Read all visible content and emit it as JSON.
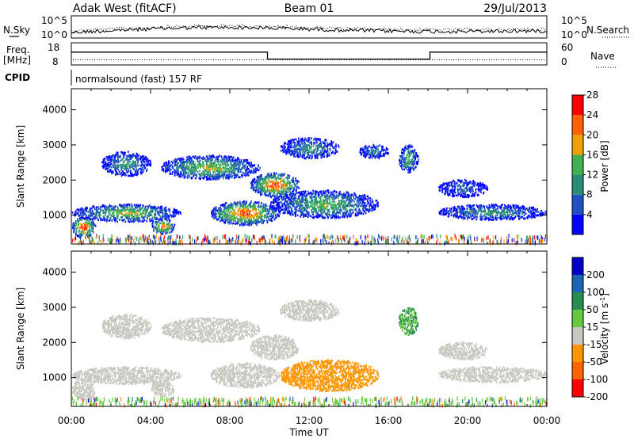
{
  "header": {
    "station": "Adak West (fitACF)",
    "beam": "Beam 01",
    "date": "29/Jul/2013"
  },
  "panels": {
    "noise": {
      "left_label": "N.Sky",
      "right_label": "N.Search",
      "left_ticks": [
        "10^5",
        "10^0"
      ],
      "right_ticks": [
        "10^5",
        "10^0"
      ]
    },
    "freq": {
      "left_label_line1": "Freq.",
      "left_label_line2": "[MHz]",
      "right_label": "Nave",
      "left_ticks": [
        "18",
        "8"
      ],
      "right_ticks": [
        "60",
        "0"
      ],
      "freq_steps": [
        {
          "start_hour": 0.0,
          "end_hour": 9.9,
          "freq_mhz": 14
        },
        {
          "start_hour": 9.9,
          "end_hour": 18.1,
          "freq_mhz": 10
        },
        {
          "start_hour": 18.1,
          "end_hour": 24.0,
          "freq_mhz": 14
        }
      ],
      "nave_value": 10
    },
    "cpid": {
      "label": "CPID",
      "program": "normalsound (fast) 157 RF"
    }
  },
  "chart_data": [
    {
      "type": "heatmap",
      "name": "power",
      "ylabel": "Slant Range [km]",
      "xlabel": "",
      "ylim": [
        180,
        4600
      ],
      "xlim_hours": [
        0,
        24
      ],
      "y_ticks": [
        "1000",
        "2000",
        "3000",
        "4000"
      ],
      "colorbar": {
        "label": "Power [dB]",
        "ticks": [
          "4",
          "8",
          "12",
          "16",
          "20",
          "24",
          "28"
        ],
        "colors": [
          "#0000ff",
          "#2050c8",
          "#2a8c78",
          "#40b050",
          "#f0a000",
          "#ff6000",
          "#ff0000"
        ]
      },
      "regions": [
        {
          "t0": 0.0,
          "t1": 1.2,
          "r0": 350,
          "r1": 950,
          "peak_db": 28
        },
        {
          "t0": 0.0,
          "t1": 5.5,
          "r0": 800,
          "r1": 1300,
          "peak_db": 18
        },
        {
          "t0": 4.0,
          "t1": 5.2,
          "r0": 450,
          "r1": 900,
          "peak_db": 24
        },
        {
          "t0": 7.0,
          "t1": 10.5,
          "r0": 700,
          "r1": 1400,
          "peak_db": 26
        },
        {
          "t0": 10.0,
          "t1": 15.5,
          "r0": 900,
          "r1": 1700,
          "peak_db": 16
        },
        {
          "t0": 9.0,
          "t1": 11.5,
          "r0": 1500,
          "r1": 2200,
          "peak_db": 26
        },
        {
          "t0": 4.5,
          "t1": 9.5,
          "r0": 2000,
          "r1": 2700,
          "peak_db": 18
        },
        {
          "t0": 1.5,
          "t1": 4.0,
          "r0": 2100,
          "r1": 2800,
          "peak_db": 12
        },
        {
          "t0": 10.5,
          "t1": 13.5,
          "r0": 2600,
          "r1": 3200,
          "peak_db": 12
        },
        {
          "t0": 14.5,
          "t1": 16.0,
          "r0": 2600,
          "r1": 3000,
          "peak_db": 10
        },
        {
          "t0": 16.5,
          "t1": 17.5,
          "r0": 2200,
          "r1": 3000,
          "peak_db": 16
        },
        {
          "t0": 18.5,
          "t1": 24.0,
          "r0": 850,
          "r1": 1300,
          "peak_db": 12
        },
        {
          "t0": 18.5,
          "t1": 21.0,
          "r0": 1500,
          "r1": 2000,
          "peak_db": 8
        }
      ]
    },
    {
      "type": "heatmap",
      "name": "velocity",
      "ylabel": "Slant Range [km]",
      "xlabel": "Time UT",
      "ylim": [
        180,
        4600
      ],
      "xlim_hours": [
        0,
        24
      ],
      "y_ticks": [
        "1000",
        "2000",
        "3000",
        "4000"
      ],
      "x_ticks": [
        "00:00",
        "04:00",
        "08:00",
        "12:00",
        "16:00",
        "20:00",
        "00:00"
      ],
      "colorbar": {
        "label": "Velocity [m s^-1]",
        "ticks": [
          "200",
          "100",
          "50",
          "15",
          "-15",
          "-50",
          "-100",
          "-200"
        ],
        "colors": [
          "#0000c8",
          "#1e64b4",
          "#288c50",
          "#64c840",
          "#c8c8c0",
          "#ff9600",
          "#ff6400",
          "#ff0000"
        ]
      },
      "regions": [
        {
          "t0": 0.0,
          "t1": 1.2,
          "r0": 350,
          "r1": 950,
          "velocity": 0
        },
        {
          "t0": 0.0,
          "t1": 5.5,
          "r0": 800,
          "r1": 1300,
          "velocity": 0
        },
        {
          "t0": 4.0,
          "t1": 5.2,
          "r0": 450,
          "r1": 900,
          "velocity": 0
        },
        {
          "t0": 7.0,
          "t1": 10.5,
          "r0": 700,
          "r1": 1400,
          "velocity": 0
        },
        {
          "t0": 10.5,
          "t1": 15.5,
          "r0": 600,
          "r1": 1500,
          "velocity": -60
        },
        {
          "t0": 9.0,
          "t1": 11.5,
          "r0": 1500,
          "r1": 2200,
          "velocity": 0
        },
        {
          "t0": 4.5,
          "t1": 9.5,
          "r0": 2000,
          "r1": 2700,
          "velocity": 0
        },
        {
          "t0": 1.5,
          "t1": 4.0,
          "r0": 2100,
          "r1": 2800,
          "velocity": 0
        },
        {
          "t0": 10.5,
          "t1": 13.5,
          "r0": 2600,
          "r1": 3200,
          "velocity": 0
        },
        {
          "t0": 16.5,
          "t1": 17.5,
          "r0": 2200,
          "r1": 3000,
          "velocity": 30
        },
        {
          "t0": 18.5,
          "t1": 24.0,
          "r0": 850,
          "r1": 1300,
          "velocity": 0
        },
        {
          "t0": 18.5,
          "t1": 21.0,
          "r0": 1500,
          "r1": 2000,
          "velocity": 0
        }
      ]
    }
  ]
}
